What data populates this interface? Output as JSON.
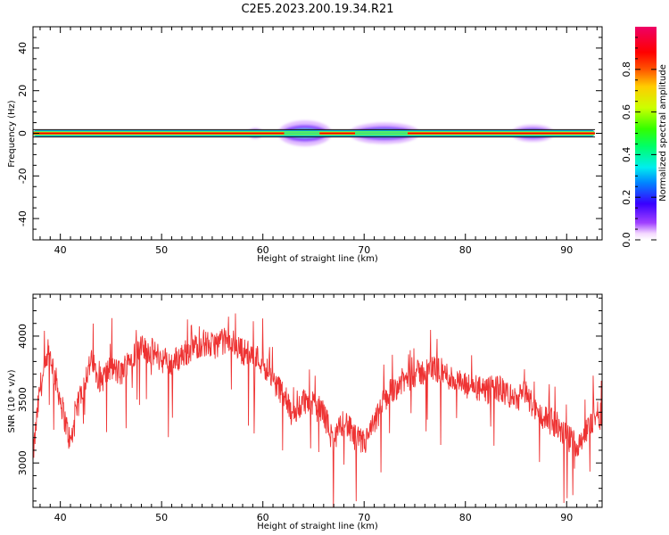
{
  "title": "C2E5.2023.200.19.34.R21",
  "chart_data": [
    {
      "type": "heatmap",
      "xlabel": "Height of straight line (km)",
      "ylabel": "Frequency (Hz)",
      "xlim": [
        37.3,
        93.5
      ],
      "ylim": [
        -50,
        50
      ],
      "xticks": [
        40,
        50,
        60,
        70,
        80,
        90
      ],
      "yticks": [
        -40,
        -20,
        0,
        20,
        40
      ],
      "colorbar": {
        "label": "Normalized spectral amplitude",
        "range": [
          0,
          1
        ],
        "ticks": [
          "0.0",
          "0.2",
          "0.4",
          "0.6",
          "0.8"
        ],
        "tick_values": [
          0,
          0.2,
          0.4,
          0.6,
          0.8
        ]
      },
      "main_band": {
        "x_start": 37.3,
        "x_end": 92.8,
        "center_hz": 0,
        "half_width_hz": 1.5
      },
      "spread_regions": [
        {
          "x_start": 58.5,
          "x_end": 60.0,
          "half_width_hz": 2.5
        },
        {
          "x_start": 61.5,
          "x_end": 66.8,
          "half_width_hz": 6
        },
        {
          "x_start": 68.5,
          "x_end": 75.5,
          "half_width_hz": 5
        },
        {
          "x_start": 84.5,
          "x_end": 88.8,
          "half_width_hz": 4
        }
      ]
    },
    {
      "type": "line",
      "xlabel": "Height of straight line (km)",
      "ylabel": "SNR (10 * v/v)",
      "xlim": [
        37.3,
        93.5
      ],
      "ylim": [
        2650,
        4330
      ],
      "xticks": [
        40,
        50,
        60,
        70,
        80,
        90
      ],
      "yticks": [
        3000,
        3500,
        4000
      ],
      "series": [
        {
          "color": "#ee3333",
          "x": [
            37.3,
            38,
            39,
            40,
            41,
            42,
            43,
            44,
            45,
            46,
            47,
            48,
            49,
            50,
            51,
            52,
            53,
            54,
            55,
            56,
            57,
            58,
            59,
            60,
            61,
            62,
            63,
            64,
            65,
            66,
            67,
            68,
            69,
            70,
            71,
            72,
            73,
            74,
            75,
            76,
            77,
            78,
            79,
            80,
            81,
            82,
            83,
            84,
            85,
            86,
            87,
            88,
            89,
            90,
            91,
            92,
            93,
            93.5
          ],
          "y": [
            3050,
            3600,
            3850,
            3500,
            3150,
            3550,
            3800,
            3650,
            3750,
            3700,
            3850,
            3900,
            3880,
            3820,
            3780,
            3850,
            3900,
            3950,
            3920,
            3960,
            3950,
            3880,
            3850,
            3800,
            3650,
            3550,
            3350,
            3500,
            3450,
            3400,
            3150,
            3350,
            3200,
            3150,
            3300,
            3500,
            3600,
            3650,
            3700,
            3720,
            3750,
            3700,
            3650,
            3600,
            3600,
            3550,
            3600,
            3550,
            3500,
            3550,
            3400,
            3350,
            3300,
            3200,
            3150,
            3250,
            3400,
            3350
          ]
        }
      ]
    }
  ]
}
